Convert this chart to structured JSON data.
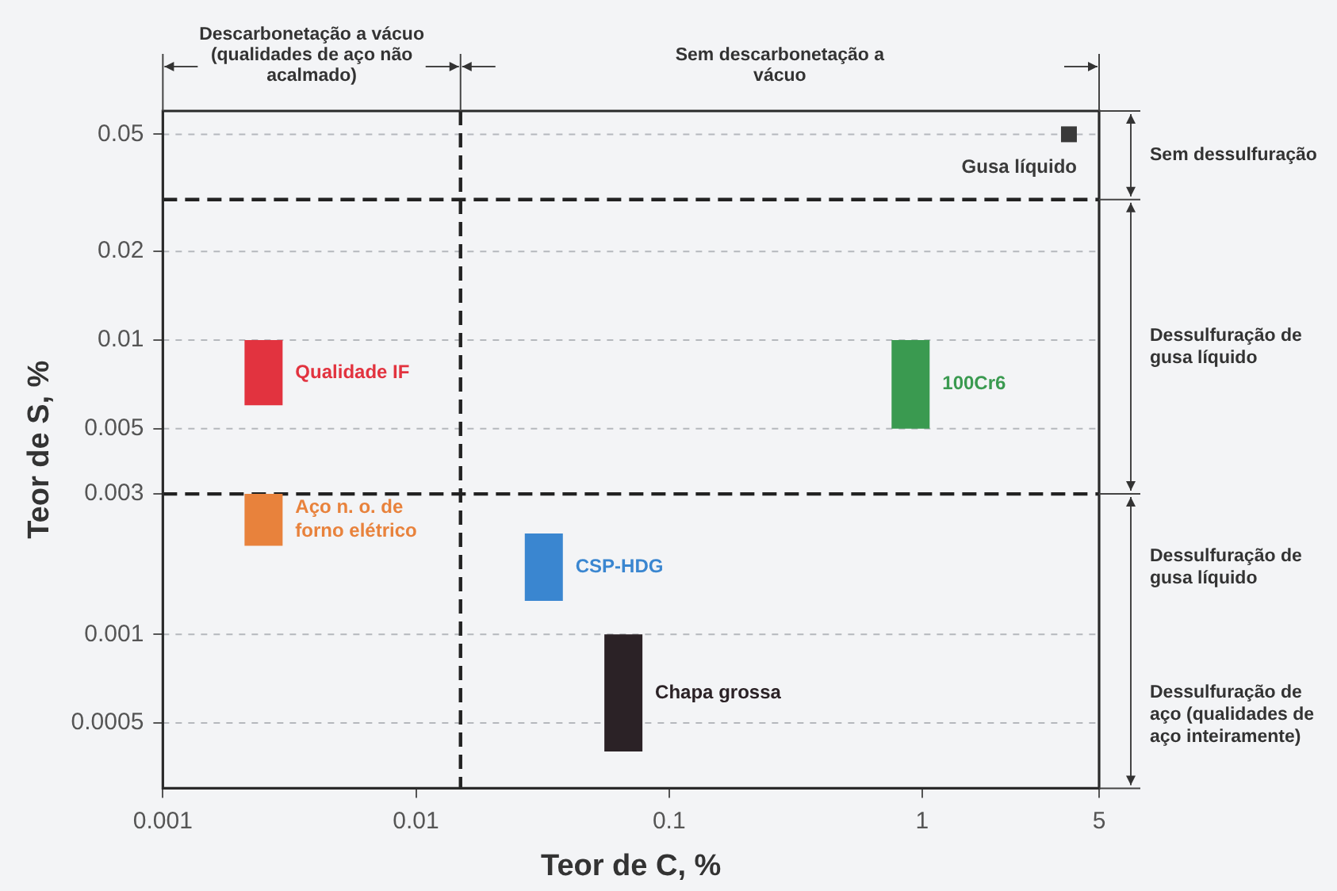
{
  "chart_data": {
    "type": "bar",
    "xlabel": "Teor de C, %",
    "ylabel": "Teor de S, %",
    "log": "xy",
    "xlim": [
      0.001,
      5
    ],
    "xticks": [
      0.001,
      0.01,
      0.1,
      1,
      5
    ],
    "ylim": [
      0.0003,
      0.06
    ],
    "yticks": [
      0.0005,
      0.001,
      0.003,
      0.005,
      0.01,
      0.02,
      0.05
    ],
    "grid": "y",
    "legend": false,
    "series": [
      {
        "name": "Qualidade IF",
        "color": "#e2333f",
        "x": [
          0.0025
        ],
        "base": [
          0.006
        ],
        "values": [
          0.004
        ]
      },
      {
        "name": "Aço n. o. de forno elétrico",
        "color": "#e8823c",
        "x": [
          0.0025
        ],
        "base": [
          0.002
        ],
        "values": [
          0.001
        ]
      },
      {
        "name": "CSP-HDG",
        "color": "#3a86d0",
        "x": [
          0.032
        ],
        "base": [
          0.0013
        ],
        "values": [
          0.0009
        ]
      },
      {
        "name": "Chapa grossa",
        "color": "#2b2226",
        "x": [
          0.066
        ],
        "base": [
          0.0004
        ],
        "values": [
          0.0006
        ]
      },
      {
        "name": "100Cr6",
        "color": "#3a9a50",
        "x": [
          0.9
        ],
        "base": [
          0.005
        ],
        "values": [
          0.005
        ]
      },
      {
        "name": "Gusa líquido",
        "type": "scatter",
        "marker": "square",
        "color": "#3a3a3a",
        "x": [
          3.8
        ],
        "values": [
          0.05
        ]
      }
    ],
    "ref_lines": [
      {
        "axis": "x",
        "value": 0.015,
        "line_style": "dashed",
        "color": "#222222"
      },
      {
        "axis": "y",
        "value": 0.03,
        "line_style": "dashed",
        "color": "#222222"
      },
      {
        "axis": "y",
        "value": 0.003,
        "line_style": "dashed",
        "color": "#222222"
      }
    ],
    "annotations": [
      "Descarbonetação a vácuo (qualidades de aço não acalmado)",
      "Sem descarbonetação a vácuo",
      "Sem dessulfuração",
      "Dessulfuração de gusa líquido",
      "Dessulfuração de gusa líquido",
      "Dessulfuração de aço (qualidades de aço inteiramente)"
    ]
  }
}
